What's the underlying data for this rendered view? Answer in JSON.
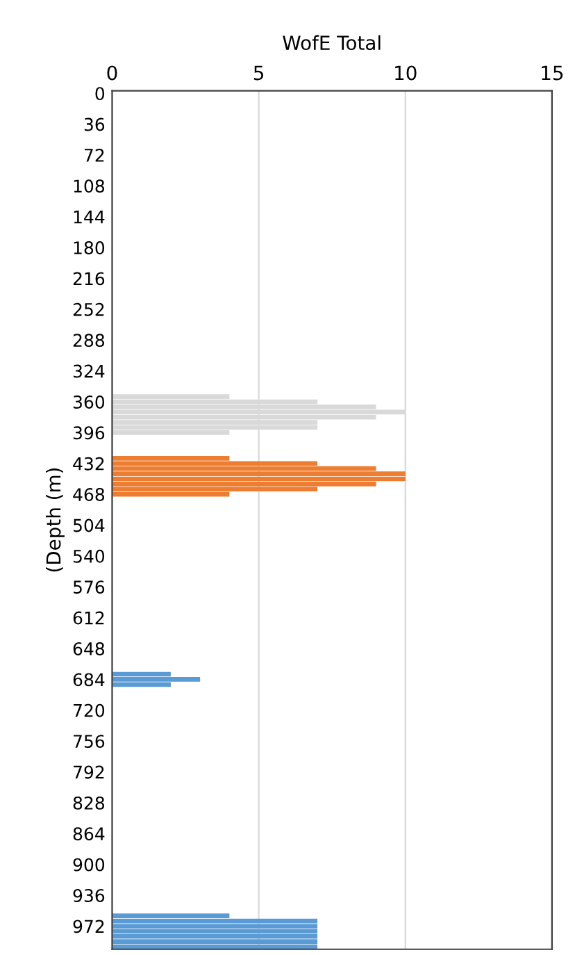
{
  "chart_data": {
    "type": "bar",
    "orientation": "horizontal",
    "xlabel": "WofE Total",
    "ylabel": "(Depth (m)",
    "xlim": [
      0,
      15
    ],
    "xticks": [
      0,
      5,
      10,
      15
    ],
    "grid": "x",
    "categories": [
      "0",
      null,
      null,
      null,
      null,
      null,
      "36",
      null,
      null,
      null,
      null,
      null,
      "72",
      null,
      null,
      null,
      null,
      null,
      "108",
      null,
      null,
      null,
      null,
      null,
      "144",
      null,
      null,
      null,
      null,
      null,
      "180",
      null,
      null,
      null,
      null,
      null,
      "216",
      null,
      null,
      null,
      null,
      null,
      "252",
      null,
      null,
      null,
      null,
      null,
      "288",
      null,
      null,
      null,
      null,
      null,
      "324",
      null,
      null,
      null,
      null,
      null,
      "360",
      null,
      null,
      null,
      null,
      null,
      "396",
      null,
      null,
      null,
      null,
      null,
      "432",
      null,
      null,
      null,
      null,
      null,
      "468",
      null,
      null,
      null,
      null,
      null,
      "504",
      null,
      null,
      null,
      null,
      null,
      "540",
      null,
      null,
      null,
      null,
      null,
      "576",
      null,
      null,
      null,
      null,
      null,
      "612",
      null,
      null,
      null,
      null,
      null,
      "648",
      null,
      null,
      null,
      null,
      null,
      "684",
      null,
      null,
      null,
      null,
      null,
      "720",
      null,
      null,
      null,
      null,
      null,
      "756",
      null,
      null,
      null,
      null,
      null,
      "792",
      null,
      null,
      null,
      null,
      null,
      "828",
      null,
      null,
      null,
      null,
      null,
      "864",
      null,
      null,
      null,
      null,
      null,
      "900",
      null,
      null,
      null,
      null,
      null,
      "936",
      null,
      null,
      null,
      null,
      null,
      "972",
      null,
      null,
      null,
      null
    ],
    "series": [
      {
        "color": "#d9d9d9",
        "values": [
          null,
          null,
          null,
          null,
          null,
          null,
          null,
          null,
          null,
          null,
          null,
          null,
          null,
          null,
          null,
          null,
          null,
          null,
          null,
          null,
          null,
          null,
          null,
          null,
          null,
          null,
          null,
          null,
          null,
          null,
          null,
          null,
          null,
          null,
          null,
          null,
          null,
          null,
          null,
          null,
          null,
          null,
          null,
          null,
          null,
          null,
          null,
          null,
          null,
          null,
          null,
          null,
          null,
          null,
          null,
          null,
          null,
          null,
          null,
          4,
          7,
          9,
          10,
          9,
          7,
          7,
          4,
          null,
          null,
          null,
          null,
          null,
          null,
          null,
          null,
          null,
          null,
          null,
          null,
          null,
          null,
          null,
          null,
          null,
          null,
          null,
          null,
          null,
          null,
          null,
          null,
          null,
          null,
          null,
          null,
          null,
          null,
          null,
          null,
          null,
          null,
          null,
          null,
          null,
          null,
          null,
          null,
          null,
          null,
          null,
          null,
          null,
          null,
          null,
          null,
          null,
          null,
          null,
          null,
          null,
          null,
          null,
          null,
          null,
          null,
          null,
          null,
          null,
          null,
          null,
          null,
          null,
          null,
          null,
          null,
          null,
          null,
          null,
          null,
          null,
          null,
          null,
          null,
          null,
          null,
          null,
          null,
          null,
          null,
          null,
          null,
          null,
          null,
          null,
          null,
          null,
          null,
          null,
          null,
          null,
          null,
          null,
          null,
          null,
          null,
          null,
          null
        ]
      },
      {
        "color": "#ed7d31",
        "values": [
          null,
          null,
          null,
          null,
          null,
          null,
          null,
          null,
          null,
          null,
          null,
          null,
          null,
          null,
          null,
          null,
          null,
          null,
          null,
          null,
          null,
          null,
          null,
          null,
          null,
          null,
          null,
          null,
          null,
          null,
          null,
          null,
          null,
          null,
          null,
          null,
          null,
          null,
          null,
          null,
          null,
          null,
          null,
          null,
          null,
          null,
          null,
          null,
          null,
          null,
          null,
          null,
          null,
          null,
          null,
          null,
          null,
          null,
          null,
          null,
          null,
          null,
          null,
          null,
          null,
          null,
          null,
          null,
          null,
          null,
          null,
          4,
          7,
          9,
          10,
          10,
          9,
          7,
          4,
          null,
          null,
          null,
          null,
          null,
          null,
          null,
          null,
          null,
          null,
          null,
          null,
          null,
          null,
          null,
          null,
          null,
          null,
          null,
          null,
          null,
          null,
          null,
          null,
          null,
          null,
          null,
          null,
          null,
          null,
          null,
          null,
          null,
          null,
          null,
          null,
          null,
          null,
          null,
          null,
          null,
          null,
          null,
          null,
          null,
          null,
          null,
          null,
          null,
          null,
          null,
          null,
          null,
          null,
          null,
          null,
          null,
          null,
          null,
          null,
          null,
          null,
          null,
          null,
          null,
          null,
          null,
          null,
          null,
          null,
          null,
          null,
          null,
          null,
          null,
          null,
          null,
          null,
          null,
          null,
          null,
          null,
          null,
          null,
          null,
          null,
          null,
          null
        ]
      },
      {
        "color": "#5b9bd5",
        "values": [
          null,
          null,
          null,
          null,
          null,
          null,
          null,
          null,
          null,
          null,
          null,
          null,
          null,
          null,
          null,
          null,
          null,
          null,
          null,
          null,
          null,
          null,
          null,
          null,
          null,
          null,
          null,
          null,
          null,
          null,
          null,
          null,
          null,
          null,
          null,
          null,
          null,
          null,
          null,
          null,
          null,
          null,
          null,
          null,
          null,
          null,
          null,
          null,
          null,
          null,
          null,
          null,
          null,
          null,
          null,
          null,
          null,
          null,
          null,
          null,
          null,
          null,
          null,
          null,
          null,
          null,
          null,
          null,
          null,
          null,
          null,
          null,
          null,
          null,
          null,
          null,
          null,
          null,
          null,
          null,
          null,
          null,
          null,
          null,
          null,
          null,
          null,
          null,
          null,
          null,
          null,
          null,
          null,
          null,
          null,
          null,
          null,
          null,
          null,
          null,
          null,
          null,
          null,
          null,
          null,
          null,
          null,
          null,
          null,
          null,
          null,
          null,
          null,
          2,
          3,
          2,
          null,
          null,
          null,
          null,
          null,
          null,
          null,
          null,
          null,
          null,
          null,
          null,
          null,
          null,
          null,
          null,
          null,
          null,
          null,
          null,
          null,
          null,
          null,
          null,
          null,
          null,
          null,
          null,
          null,
          null,
          null,
          null,
          null,
          null,
          null,
          null,
          null,
          null,
          null,
          null,
          null,
          null,
          null,
          null,
          4,
          7,
          7,
          7,
          7,
          7,
          7
        ]
      }
    ]
  }
}
